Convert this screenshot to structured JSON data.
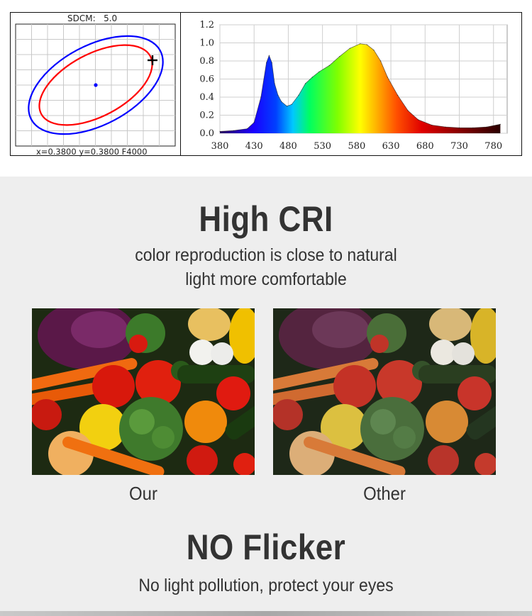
{
  "sdcm_chart": {
    "title_label": "SDCM:",
    "title_value": "5.0",
    "coords": "x=0.3800 y=0.3800 F4000",
    "ellipse_colors": [
      "#0000ff",
      "#ff0000"
    ],
    "center_dot_color": "#0000ff"
  },
  "chart_data": {
    "type": "area",
    "title": "",
    "xlabel": "",
    "ylabel": "",
    "x_ticks": [
      "380",
      "430",
      "480",
      "530",
      "580",
      "630",
      "680",
      "730",
      "780"
    ],
    "y_ticks": [
      "0.0",
      "0.2",
      "0.4",
      "0.6",
      "0.8",
      "1.0",
      "1.2"
    ],
    "xlim": [
      380,
      800
    ],
    "ylim": [
      0,
      1.2
    ],
    "grid": true,
    "fill": "spectral rainbow (violet to deep red)",
    "x": [
      380,
      400,
      420,
      430,
      440,
      448,
      452,
      456,
      460,
      465,
      470,
      478,
      485,
      495,
      505,
      515,
      525,
      540,
      555,
      570,
      585,
      595,
      605,
      615,
      625,
      640,
      655,
      670,
      690,
      710,
      730,
      750,
      770,
      790
    ],
    "y": [
      0.02,
      0.03,
      0.05,
      0.12,
      0.4,
      0.78,
      0.86,
      0.78,
      0.55,
      0.42,
      0.35,
      0.3,
      0.32,
      0.42,
      0.55,
      0.62,
      0.68,
      0.75,
      0.85,
      0.94,
      0.99,
      0.98,
      0.92,
      0.8,
      0.62,
      0.42,
      0.25,
      0.15,
      0.09,
      0.07,
      0.06,
      0.06,
      0.07,
      0.1
    ]
  },
  "promo": {
    "headline1": "High CRI",
    "subtitle1_line1": "color reproduction is close to natural",
    "subtitle1_line2": "light more comfortable",
    "caption_ours": "Our",
    "caption_other": "Other",
    "headline2": "NO Flicker",
    "subtitle2": "No light pollution, protect your eyes"
  }
}
